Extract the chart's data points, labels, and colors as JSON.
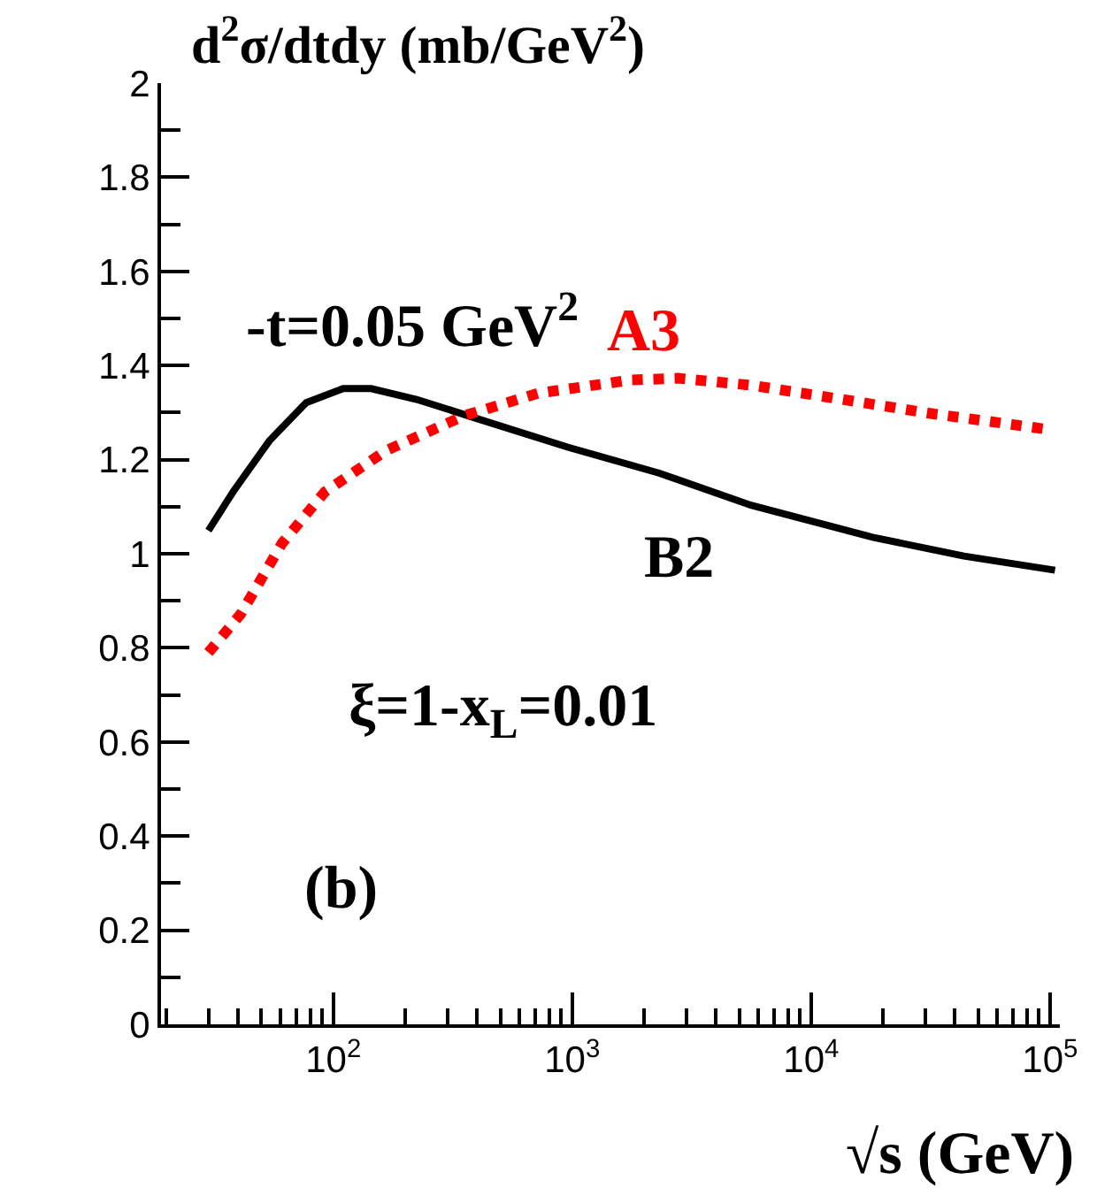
{
  "chart_data": {
    "type": "line",
    "ylabel": "d$^{2}$σ/dtdy (mb/GeV$^{2}$)",
    "xlabel": "√s (GeV)",
    "log": "x",
    "grid": false,
    "legend": false,
    "xlim": [
      19,
      110000
    ],
    "xticks": [
      {
        "value": 100,
        "label": "10$^{2}$"
      },
      {
        "value": 1000,
        "label": "10$^{3}$"
      },
      {
        "value": 10000,
        "label": "10$^{4}$"
      },
      {
        "value": 100000,
        "label": "10$^{5}$"
      }
    ],
    "ylim": [
      0,
      2
    ],
    "yticks": [
      0,
      0.2,
      0.4,
      0.6,
      0.8,
      1,
      1.2,
      1.4,
      1.6,
      1.8,
      2
    ],
    "annotations": [
      "-t=0.05 GeV$^{2}$",
      "ξ=1-x$_{L}$=0.01",
      "(b)"
    ],
    "series": [
      {
        "name": "B2",
        "color": "#000000",
        "line_style": "solid",
        "x": [
          30,
          38,
          54,
          77,
          110,
          144,
          223,
          401,
          964,
          2320,
          5610,
          18100,
          43600,
          105000
        ],
        "values": [
          1.049,
          1.131,
          1.24,
          1.321,
          1.351,
          1.351,
          1.328,
          1.287,
          1.226,
          1.171,
          1.103,
          1.035,
          0.995,
          0.965
        ]
      },
      {
        "name": "A3",
        "color": "#ff0000",
        "line_style": "dotted",
        "x": [
          30,
          41,
          61,
          92,
          166,
          356,
          720,
          1740,
          2770,
          5610,
          13500,
          32700,
          98900
        ],
        "values": [
          0.79,
          0.872,
          1.022,
          1.131,
          1.219,
          1.294,
          1.341,
          1.369,
          1.373,
          1.358,
          1.328,
          1.297,
          1.264
        ]
      }
    ]
  }
}
